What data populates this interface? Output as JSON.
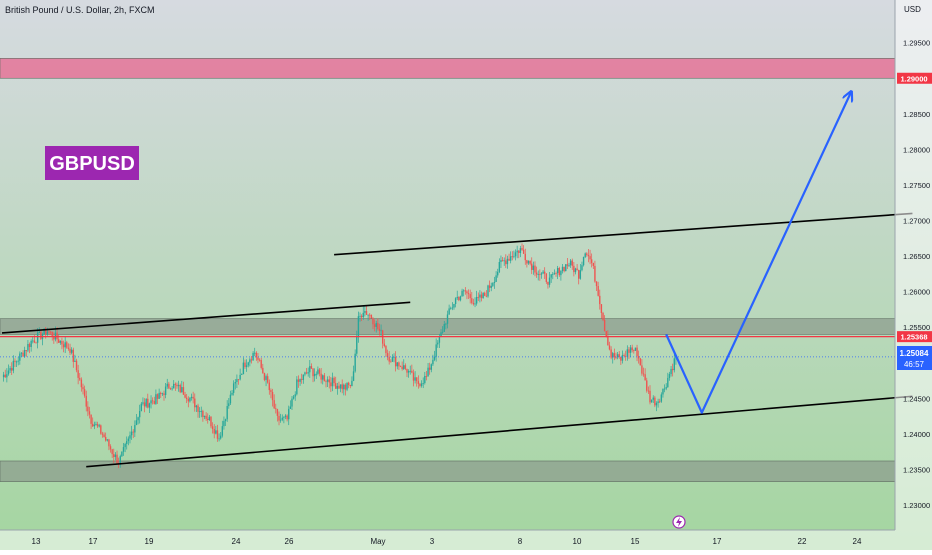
{
  "header": {
    "symbol_title": "British Pound / U.S. Dollar, 2h, FXCM"
  },
  "badge": {
    "label": "GBPUSD",
    "color": "#9c27b0"
  },
  "price_axis": {
    "currency": "USD"
  },
  "current_price": {
    "value": "1.25084",
    "countdown": "46:57",
    "color": "#2962ff"
  },
  "level_tags": [
    {
      "value": "1.29000",
      "color": "#f23645"
    },
    {
      "value": "1.25368",
      "color": "#f23645"
    }
  ],
  "colors": {
    "up_candle": "#26a69a",
    "down_candle": "#ef5350",
    "projection": "#2962ff",
    "trendline": "#000000",
    "resistance_zone": "#e57398",
    "gray_zone": "#8a9a8c",
    "background_top": "#d6dae0",
    "background_bottom": "#a4d6a0"
  },
  "chart_data": {
    "type": "candlestick",
    "title": "British Pound / U.S. Dollar, 2h, FXCM",
    "ylim": [
      1.2265,
      1.301
    ],
    "y_ticks": [
      "1.29500",
      "1.29000",
      "1.28500",
      "1.28000",
      "1.27500",
      "1.27000",
      "1.26500",
      "1.26000",
      "1.25500",
      "1.25000",
      "1.24500",
      "1.24000",
      "1.23500",
      "1.23000"
    ],
    "x_ticks": [
      "13",
      "17",
      "19",
      "24",
      "26",
      "May",
      "3",
      "8",
      "10",
      "15",
      "17",
      "22",
      "24"
    ],
    "anchors": [
      [
        0,
        1.248
      ],
      [
        8,
        1.25
      ],
      [
        18,
        1.253
      ],
      [
        28,
        1.2545
      ],
      [
        36,
        1.253
      ],
      [
        42,
        1.252
      ],
      [
        48,
        1.2475
      ],
      [
        55,
        1.242
      ],
      [
        62,
        1.24
      ],
      [
        68,
        1.2375
      ],
      [
        72,
        1.236
      ],
      [
        78,
        1.239
      ],
      [
        86,
        1.244
      ],
      [
        96,
        1.245
      ],
      [
        104,
        1.247
      ],
      [
        112,
        1.246
      ],
      [
        120,
        1.244
      ],
      [
        128,
        1.242
      ],
      [
        134,
        1.2395
      ],
      [
        142,
        1.246
      ],
      [
        150,
        1.25
      ],
      [
        156,
        1.2515
      ],
      [
        164,
        1.247
      ],
      [
        170,
        1.242
      ],
      [
        176,
        1.242
      ],
      [
        182,
        1.247
      ],
      [
        190,
        1.249
      ],
      [
        198,
        1.248
      ],
      [
        206,
        1.247
      ],
      [
        212,
        1.2465
      ],
      [
        216,
        1.247
      ],
      [
        220,
        1.256
      ],
      [
        223,
        1.2575
      ],
      [
        228,
        1.2565
      ],
      [
        234,
        1.254
      ],
      [
        238,
        1.251
      ],
      [
        244,
        1.25
      ],
      [
        250,
        1.249
      ],
      [
        256,
        1.247
      ],
      [
        262,
        1.248
      ],
      [
        268,
        1.252
      ],
      [
        274,
        1.256
      ],
      [
        280,
        1.259
      ],
      [
        286,
        1.26
      ],
      [
        292,
        1.2585
      ],
      [
        298,
        1.2595
      ],
      [
        304,
        1.262
      ],
      [
        308,
        1.264
      ],
      [
        314,
        1.265
      ],
      [
        320,
        1.266
      ],
      [
        326,
        1.264
      ],
      [
        332,
        1.2625
      ],
      [
        338,
        1.2615
      ],
      [
        344,
        1.263
      ],
      [
        350,
        1.264
      ],
      [
        356,
        1.2625
      ],
      [
        360,
        1.266
      ],
      [
        364,
        1.264
      ],
      [
        368,
        1.26
      ],
      [
        372,
        1.255
      ],
      [
        376,
        1.251
      ],
      [
        382,
        1.2505
      ],
      [
        388,
        1.252
      ],
      [
        392,
        1.2515
      ],
      [
        396,
        1.248
      ],
      [
        400,
        1.245
      ],
      [
        404,
        1.2445
      ],
      [
        408,
        1.246
      ],
      [
        412,
        1.2485
      ],
      [
        416,
        1.2508
      ]
    ],
    "trendlines": [
      {
        "name": "upper-channel-line",
        "points": [
          [
            205,
            1.2652
          ],
          [
            562,
            1.271
          ]
        ]
      },
      {
        "name": "lower-channel-line",
        "points": [
          [
            52,
            1.2354
          ],
          [
            562,
            1.2453
          ]
        ]
      },
      {
        "name": "left-upper-line",
        "points": [
          [
            0,
            1.2542
          ],
          [
            252,
            1.2585
          ]
        ]
      }
    ],
    "zones": [
      {
        "name": "resistance-zone",
        "top": 1.2928,
        "bottom": 1.29
      },
      {
        "name": "mid-zone",
        "top": 1.2562,
        "bottom": 1.254
      },
      {
        "name": "support-zone",
        "top": 1.2362,
        "bottom": 1.2333
      }
    ],
    "hlines": [
      {
        "name": "key-level-line",
        "y": 1.25368
      }
    ],
    "projection": {
      "points": [
        [
          410,
          1.254
        ],
        [
          432,
          1.243
        ],
        [
          524,
          1.288
        ]
      ]
    }
  }
}
